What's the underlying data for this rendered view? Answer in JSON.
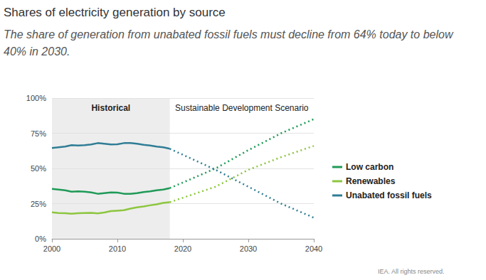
{
  "chart_data": {
    "type": "line",
    "title": "Shares of electricity generation by source",
    "subtitle": "The share of generation from unabated fossil fuels must decline from 64% today to below 40% in 2030.",
    "source": "IEA. All rights reserved.",
    "periods": [
      {
        "label": "Historical",
        "from": 2000,
        "to": 2018
      },
      {
        "label": "Sustainable Development Scenario",
        "from": 2018,
        "to": 2040
      }
    ],
    "x": [
      2000,
      2001,
      2002,
      2003,
      2004,
      2005,
      2006,
      2007,
      2008,
      2009,
      2010,
      2011,
      2012,
      2013,
      2014,
      2015,
      2016,
      2017,
      2018,
      2025,
      2030,
      2035,
      2040
    ],
    "series": [
      {
        "name": "Low carbon",
        "color": "#1f9a57",
        "values": [
          35.5,
          35,
          34.5,
          33.5,
          33.7,
          33.5,
          33,
          32,
          32.5,
          33,
          32.8,
          32,
          32,
          32.5,
          33.2,
          33.7,
          34.5,
          35,
          36,
          50,
          63,
          75,
          85
        ]
      },
      {
        "name": "Renewables",
        "color": "#8dc63f",
        "values": [
          18.8,
          18.3,
          18.2,
          17.8,
          18.2,
          18.3,
          18.4,
          18.1,
          18.7,
          19.7,
          20,
          20.3,
          21.5,
          22.3,
          23,
          23.8,
          24.5,
          25.5,
          26,
          37,
          49,
          58,
          66
        ]
      },
      {
        "name": "Unabated fossil fuels",
        "color": "#2f7d95",
        "values": [
          64.5,
          65,
          65.5,
          66.5,
          66.3,
          66.5,
          67,
          68,
          67.5,
          67,
          67.2,
          68,
          68,
          67.5,
          66.8,
          66.3,
          65.5,
          65,
          64,
          49,
          37,
          25,
          15
        ]
      }
    ],
    "xlim": [
      2000,
      2040
    ],
    "xticks": [
      2000,
      2010,
      2020,
      2030,
      2040
    ],
    "ylim": [
      0,
      100
    ],
    "yticks": [
      {
        "value": 0,
        "label": "0%"
      },
      {
        "value": 25,
        "label": "25%"
      },
      {
        "value": 50,
        "label": "50%"
      },
      {
        "value": 75,
        "label": "75%"
      },
      {
        "value": 100,
        "label": "100%"
      }
    ],
    "grid": true,
    "legend": "right"
  }
}
